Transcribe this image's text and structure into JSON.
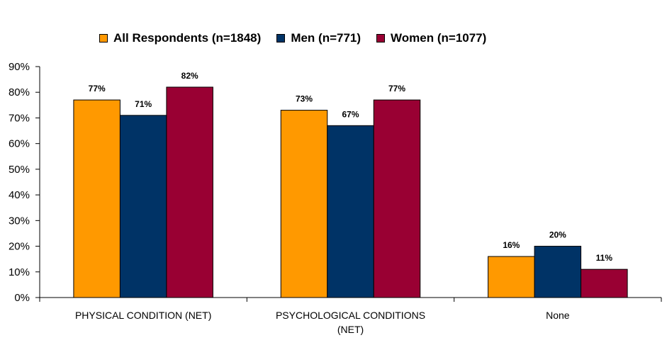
{
  "chart_data": {
    "type": "bar",
    "categories": [
      "PHYSICAL CONDITION (NET)",
      "PSYCHOLOGICAL CONDITIONS (NET)",
      "None"
    ],
    "category_lines": [
      [
        "PHYSICAL CONDITION (NET)"
      ],
      [
        "PSYCHOLOGICAL CONDITIONS",
        "(NET)"
      ],
      [
        "None"
      ]
    ],
    "series": [
      {
        "name": "All Respondents (n=1848)",
        "values": [
          77,
          73,
          16
        ],
        "labels": [
          "77%",
          "73%",
          "16%"
        ],
        "color": "#FF9900"
      },
      {
        "name": "Men (n=771)",
        "values": [
          71,
          67,
          20
        ],
        "labels": [
          "71%",
          "67%",
          "20%"
        ],
        "color": "#003366"
      },
      {
        "name": "Women (n=1077)",
        "values": [
          82,
          77,
          11
        ],
        "labels": [
          "82%",
          "77%",
          "11%"
        ],
        "color": "#990033"
      }
    ],
    "yticks": [
      "0%",
      "10%",
      "20%",
      "30%",
      "40%",
      "50%",
      "60%",
      "70%",
      "80%",
      "90%"
    ],
    "ylim": [
      0,
      90
    ],
    "title": "",
    "xlabel": "",
    "ylabel": "",
    "legend_position": "top",
    "grid": false
  }
}
